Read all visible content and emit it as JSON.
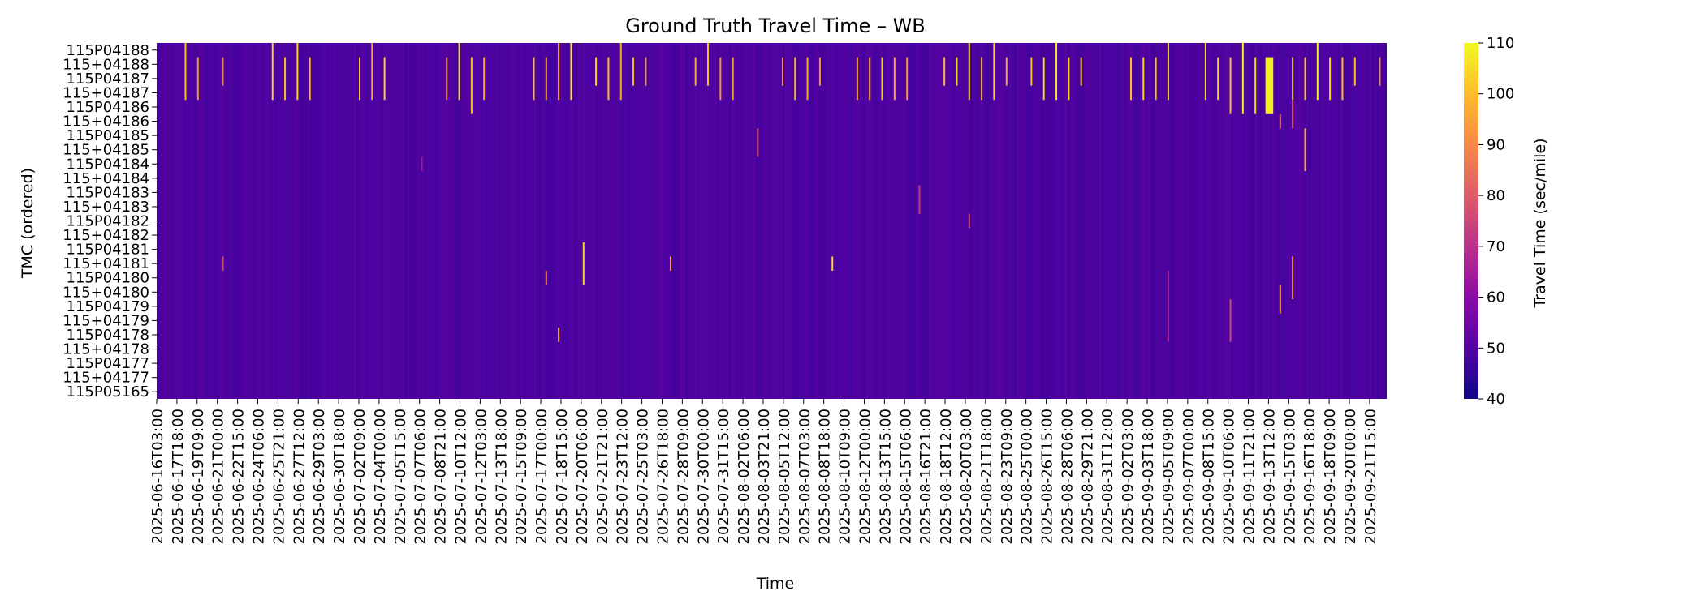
{
  "chart_data": {
    "type": "heatmap",
    "title": "Ground Truth Travel Time – WB",
    "xlabel": "Time",
    "ylabel": "TMC (ordered)",
    "colorbar": {
      "label": "Travel Time (sec/mile)",
      "colormap": "plasma",
      "vmin": 40,
      "vmax": 110,
      "ticks": [
        40,
        50,
        60,
        70,
        80,
        90,
        100,
        110
      ]
    },
    "y_categories": [
      "115P04188",
      "115+04188",
      "115P04187",
      "115+04187",
      "115P04186",
      "115+04186",
      "115P04185",
      "115+04185",
      "115P04184",
      "115+04184",
      "115P04183",
      "115+04183",
      "115P04182",
      "115+04182",
      "115P04181",
      "115+04181",
      "115P04180",
      "115+04180",
      "115P04179",
      "115+04179",
      "115P04178",
      "115+04178",
      "115P04177",
      "115+04177",
      "115P05165"
    ],
    "x_tick_labels": [
      "2025-06-16T03:00",
      "2025-06-17T18:00",
      "2025-06-19T09:00",
      "2025-06-21T00:00",
      "2025-06-22T15:00",
      "2025-06-24T06:00",
      "2025-06-25T21:00",
      "2025-06-27T12:00",
      "2025-06-29T03:00",
      "2025-06-30T18:00",
      "2025-07-02T09:00",
      "2025-07-04T00:00",
      "2025-07-05T15:00",
      "2025-07-07T06:00",
      "2025-07-08T21:00",
      "2025-07-10T12:00",
      "2025-07-12T03:00",
      "2025-07-13T18:00",
      "2025-07-15T09:00",
      "2025-07-17T00:00",
      "2025-07-18T15:00",
      "2025-07-20T06:00",
      "2025-07-21T21:00",
      "2025-07-23T12:00",
      "2025-07-25T03:00",
      "2025-07-26T18:00",
      "2025-07-28T09:00",
      "2025-07-30T00:00",
      "2025-07-31T15:00",
      "2025-08-02T06:00",
      "2025-08-03T21:00",
      "2025-08-05T12:00",
      "2025-08-07T03:00",
      "2025-08-08T18:00",
      "2025-08-10T09:00",
      "2025-08-12T00:00",
      "2025-08-13T15:00",
      "2025-08-15T06:00",
      "2025-08-16T21:00",
      "2025-08-18T12:00",
      "2025-08-20T03:00",
      "2025-08-21T18:00",
      "2025-08-23T09:00",
      "2025-08-25T00:00",
      "2025-08-26T15:00",
      "2025-08-28T06:00",
      "2025-08-29T21:00",
      "2025-08-31T12:00",
      "2025-09-02T03:00",
      "2025-09-03T18:00",
      "2025-09-05T09:00",
      "2025-09-07T00:00",
      "2025-09-08T15:00",
      "2025-09-10T06:00",
      "2025-09-11T21:00",
      "2025-09-13T12:00",
      "2025-09-15T03:00",
      "2025-09-16T18:00",
      "2025-09-18T09:00",
      "2025-09-20T00:00",
      "2025-09-21T15:00"
    ],
    "x_range": [
      "2025-06-16T03:00",
      "2025-09-23T00:00"
    ],
    "baseline_value": 49,
    "events": [
      {
        "start": "2025-06-18T09:00",
        "end": "2025-06-18T12:00",
        "rows": [
          0,
          4
        ],
        "value": 100
      },
      {
        "start": "2025-06-19T09:00",
        "end": "2025-06-19T12:00",
        "rows": [
          1,
          4
        ],
        "value": 92
      },
      {
        "start": "2025-06-21T09:00",
        "end": "2025-06-21T12:00",
        "rows": [
          1,
          3
        ],
        "value": 88
      },
      {
        "start": "2025-06-25T09:00",
        "end": "2025-06-25T12:00",
        "rows": [
          0,
          4
        ],
        "value": 104
      },
      {
        "start": "2025-06-26T09:00",
        "end": "2025-06-26T12:00",
        "rows": [
          1,
          4
        ],
        "value": 100
      },
      {
        "start": "2025-06-27T09:00",
        "end": "2025-06-27T12:00",
        "rows": [
          0,
          4
        ],
        "value": 104
      },
      {
        "start": "2025-06-28T09:00",
        "end": "2025-06-28T12:00",
        "rows": [
          1,
          4
        ],
        "value": 100
      },
      {
        "start": "2025-07-02T09:00",
        "end": "2025-07-02T12:00",
        "rows": [
          1,
          4
        ],
        "value": 100
      },
      {
        "start": "2025-07-03T09:00",
        "end": "2025-07-03T12:00",
        "rows": [
          0,
          4
        ],
        "value": 96
      },
      {
        "start": "2025-07-04T09:00",
        "end": "2025-07-04T12:00",
        "rows": [
          1,
          4
        ],
        "value": 104
      },
      {
        "start": "2025-07-09T09:00",
        "end": "2025-07-09T12:00",
        "rows": [
          1,
          4
        ],
        "value": 92
      },
      {
        "start": "2025-07-10T09:00",
        "end": "2025-07-10T12:00",
        "rows": [
          0,
          4
        ],
        "value": 104
      },
      {
        "start": "2025-07-11T09:00",
        "end": "2025-07-11T12:00",
        "rows": [
          1,
          5
        ],
        "value": 100
      },
      {
        "start": "2025-07-12T09:00",
        "end": "2025-07-12T12:00",
        "rows": [
          1,
          4
        ],
        "value": 96
      },
      {
        "start": "2025-07-16T09:00",
        "end": "2025-07-16T12:00",
        "rows": [
          1,
          4
        ],
        "value": 100
      },
      {
        "start": "2025-07-17T09:00",
        "end": "2025-07-17T12:00",
        "rows": [
          1,
          4
        ],
        "value": 96
      },
      {
        "start": "2025-07-18T09:00",
        "end": "2025-07-18T12:00",
        "rows": [
          0,
          4
        ],
        "value": 100
      },
      {
        "start": "2025-07-19T09:00",
        "end": "2025-07-19T12:00",
        "rows": [
          0,
          4
        ],
        "value": 108
      },
      {
        "start": "2025-07-21T09:00",
        "end": "2025-07-21T12:00",
        "rows": [
          1,
          3
        ],
        "value": 104
      },
      {
        "start": "2025-07-22T09:00",
        "end": "2025-07-22T12:00",
        "rows": [
          1,
          4
        ],
        "value": 100
      },
      {
        "start": "2025-07-23T09:00",
        "end": "2025-07-23T12:00",
        "rows": [
          0,
          4
        ],
        "value": 96
      },
      {
        "start": "2025-07-24T09:00",
        "end": "2025-07-24T12:00",
        "rows": [
          1,
          3
        ],
        "value": 100
      },
      {
        "start": "2025-07-25T09:00",
        "end": "2025-07-25T12:00",
        "rows": [
          1,
          3
        ],
        "value": 92
      },
      {
        "start": "2025-07-29T09:00",
        "end": "2025-07-29T12:00",
        "rows": [
          1,
          3
        ],
        "value": 96
      },
      {
        "start": "2025-07-30T09:00",
        "end": "2025-07-30T12:00",
        "rows": [
          0,
          3
        ],
        "value": 100
      },
      {
        "start": "2025-07-31T09:00",
        "end": "2025-07-31T12:00",
        "rows": [
          1,
          4
        ],
        "value": 92
      },
      {
        "start": "2025-08-01T09:00",
        "end": "2025-08-01T12:00",
        "rows": [
          1,
          4
        ],
        "value": 96
      },
      {
        "start": "2025-08-05T09:00",
        "end": "2025-08-05T12:00",
        "rows": [
          1,
          3
        ],
        "value": 92
      },
      {
        "start": "2025-08-06T09:00",
        "end": "2025-08-06T12:00",
        "rows": [
          1,
          4
        ],
        "value": 100
      },
      {
        "start": "2025-08-07T09:00",
        "end": "2025-08-07T12:00",
        "rows": [
          1,
          4
        ],
        "value": 96
      },
      {
        "start": "2025-08-08T09:00",
        "end": "2025-08-08T12:00",
        "rows": [
          1,
          3
        ],
        "value": 92
      },
      {
        "start": "2025-08-11T09:00",
        "end": "2025-08-11T12:00",
        "rows": [
          1,
          4
        ],
        "value": 96
      },
      {
        "start": "2025-08-12T09:00",
        "end": "2025-08-12T12:00",
        "rows": [
          1,
          4
        ],
        "value": 100
      },
      {
        "start": "2025-08-13T09:00",
        "end": "2025-08-13T12:00",
        "rows": [
          1,
          4
        ],
        "value": 104
      },
      {
        "start": "2025-08-14T09:00",
        "end": "2025-08-14T12:00",
        "rows": [
          1,
          4
        ],
        "value": 96
      },
      {
        "start": "2025-08-15T09:00",
        "end": "2025-08-15T12:00",
        "rows": [
          1,
          4
        ],
        "value": 92
      },
      {
        "start": "2025-08-18T09:00",
        "end": "2025-08-18T12:00",
        "rows": [
          1,
          3
        ],
        "value": 100
      },
      {
        "start": "2025-08-19T09:00",
        "end": "2025-08-19T12:00",
        "rows": [
          1,
          3
        ],
        "value": 104
      },
      {
        "start": "2025-08-20T09:00",
        "end": "2025-08-20T12:00",
        "rows": [
          0,
          4
        ],
        "value": 104
      },
      {
        "start": "2025-08-21T09:00",
        "end": "2025-08-21T12:00",
        "rows": [
          1,
          4
        ],
        "value": 100
      },
      {
        "start": "2025-08-22T09:00",
        "end": "2025-08-22T12:00",
        "rows": [
          0,
          4
        ],
        "value": 104
      },
      {
        "start": "2025-08-23T09:00",
        "end": "2025-08-23T12:00",
        "rows": [
          1,
          3
        ],
        "value": 96
      },
      {
        "start": "2025-08-25T09:00",
        "end": "2025-08-25T12:00",
        "rows": [
          1,
          3
        ],
        "value": 100
      },
      {
        "start": "2025-08-26T09:00",
        "end": "2025-08-26T12:00",
        "rows": [
          1,
          4
        ],
        "value": 104
      },
      {
        "start": "2025-08-27T09:00",
        "end": "2025-08-27T12:00",
        "rows": [
          0,
          4
        ],
        "value": 108
      },
      {
        "start": "2025-08-28T09:00",
        "end": "2025-08-28T12:00",
        "rows": [
          1,
          4
        ],
        "value": 104
      },
      {
        "start": "2025-08-29T09:00",
        "end": "2025-08-29T12:00",
        "rows": [
          1,
          3
        ],
        "value": 100
      },
      {
        "start": "2025-09-02T09:00",
        "end": "2025-09-02T12:00",
        "rows": [
          1,
          4
        ],
        "value": 100
      },
      {
        "start": "2025-09-03T09:00",
        "end": "2025-09-03T12:00",
        "rows": [
          1,
          4
        ],
        "value": 104
      },
      {
        "start": "2025-09-04T09:00",
        "end": "2025-09-04T12:00",
        "rows": [
          1,
          4
        ],
        "value": 100
      },
      {
        "start": "2025-09-05T09:00",
        "end": "2025-09-05T12:00",
        "rows": [
          0,
          4
        ],
        "value": 104
      },
      {
        "start": "2025-09-08T09:00",
        "end": "2025-09-08T12:00",
        "rows": [
          0,
          4
        ],
        "value": 108
      },
      {
        "start": "2025-09-09T09:00",
        "end": "2025-09-09T12:00",
        "rows": [
          1,
          4
        ],
        "value": 104
      },
      {
        "start": "2025-09-10T09:00",
        "end": "2025-09-10T12:00",
        "rows": [
          1,
          5
        ],
        "value": 100
      },
      {
        "start": "2025-09-11T09:00",
        "end": "2025-09-11T12:00",
        "rows": [
          0,
          5
        ],
        "value": 108
      },
      {
        "start": "2025-09-12T09:00",
        "end": "2025-09-12T12:00",
        "rows": [
          1,
          5
        ],
        "value": 104
      },
      {
        "start": "2025-09-13T06:00",
        "end": "2025-09-13T21:00",
        "rows": [
          1,
          5
        ],
        "value": 108
      },
      {
        "start": "2025-09-15T09:00",
        "end": "2025-09-15T12:00",
        "rows": [
          1,
          4
        ],
        "value": 104
      },
      {
        "start": "2025-09-16T09:00",
        "end": "2025-09-16T12:00",
        "rows": [
          1,
          4
        ],
        "value": 100
      },
      {
        "start": "2025-09-17T09:00",
        "end": "2025-09-17T12:00",
        "rows": [
          0,
          4
        ],
        "value": 108
      },
      {
        "start": "2025-09-18T09:00",
        "end": "2025-09-18T12:00",
        "rows": [
          1,
          4
        ],
        "value": 104
      },
      {
        "start": "2025-09-19T09:00",
        "end": "2025-09-19T12:00",
        "rows": [
          1,
          4
        ],
        "value": 100
      },
      {
        "start": "2025-09-20T09:00",
        "end": "2025-09-20T12:00",
        "rows": [
          1,
          3
        ],
        "value": 100
      },
      {
        "start": "2025-09-22T09:00",
        "end": "2025-09-22T12:00",
        "rows": [
          1,
          3
        ],
        "value": 92
      },
      {
        "start": "2025-07-07T09:00",
        "end": "2025-07-07T12:00",
        "rows": [
          8,
          9
        ],
        "value": 64
      },
      {
        "start": "2025-06-21T09:00",
        "end": "2025-06-21T12:00",
        "rows": [
          15,
          16
        ],
        "value": 78
      },
      {
        "start": "2025-07-17T09:00",
        "end": "2025-07-17T12:00",
        "rows": [
          16,
          17
        ],
        "value": 88
      },
      {
        "start": "2025-07-18T09:00",
        "end": "2025-07-18T12:00",
        "rows": [
          20,
          21
        ],
        "value": 100
      },
      {
        "start": "2025-07-20T09:00",
        "end": "2025-07-20T12:00",
        "rows": [
          14,
          17
        ],
        "value": 104
      },
      {
        "start": "2025-07-27T09:00",
        "end": "2025-07-27T12:00",
        "rows": [
          15,
          16
        ],
        "value": 96
      },
      {
        "start": "2025-08-03T09:00",
        "end": "2025-08-03T12:00",
        "rows": [
          6,
          8
        ],
        "value": 80
      },
      {
        "start": "2025-08-09T09:00",
        "end": "2025-08-09T12:00",
        "rows": [
          15,
          16
        ],
        "value": 104
      },
      {
        "start": "2025-08-16T09:00",
        "end": "2025-08-16T12:00",
        "rows": [
          10,
          12
        ],
        "value": 72
      },
      {
        "start": "2025-08-20T09:00",
        "end": "2025-08-20T12:00",
        "rows": [
          12,
          13
        ],
        "value": 76
      },
      {
        "start": "2025-09-05T09:00",
        "end": "2025-09-05T12:00",
        "rows": [
          16,
          21
        ],
        "value": 66
      },
      {
        "start": "2025-09-10T09:00",
        "end": "2025-09-10T12:00",
        "rows": [
          18,
          21
        ],
        "value": 76
      },
      {
        "start": "2025-09-14T09:00",
        "end": "2025-09-14T12:00",
        "rows": [
          17,
          19
        ],
        "value": 96
      },
      {
        "start": "2025-09-15T09:00",
        "end": "2025-09-15T12:00",
        "rows": [
          15,
          18
        ],
        "value": 92
      },
      {
        "start": "2025-09-16T09:00",
        "end": "2025-09-16T12:00",
        "rows": [
          6,
          9
        ],
        "value": 96
      },
      {
        "start": "2025-09-14T09:00",
        "end": "2025-09-14T12:00",
        "rows": [
          5,
          6
        ],
        "value": 84
      },
      {
        "start": "2025-09-15T09:00",
        "end": "2025-09-15T12:00",
        "rows": [
          4,
          6
        ],
        "value": 80
      }
    ]
  }
}
